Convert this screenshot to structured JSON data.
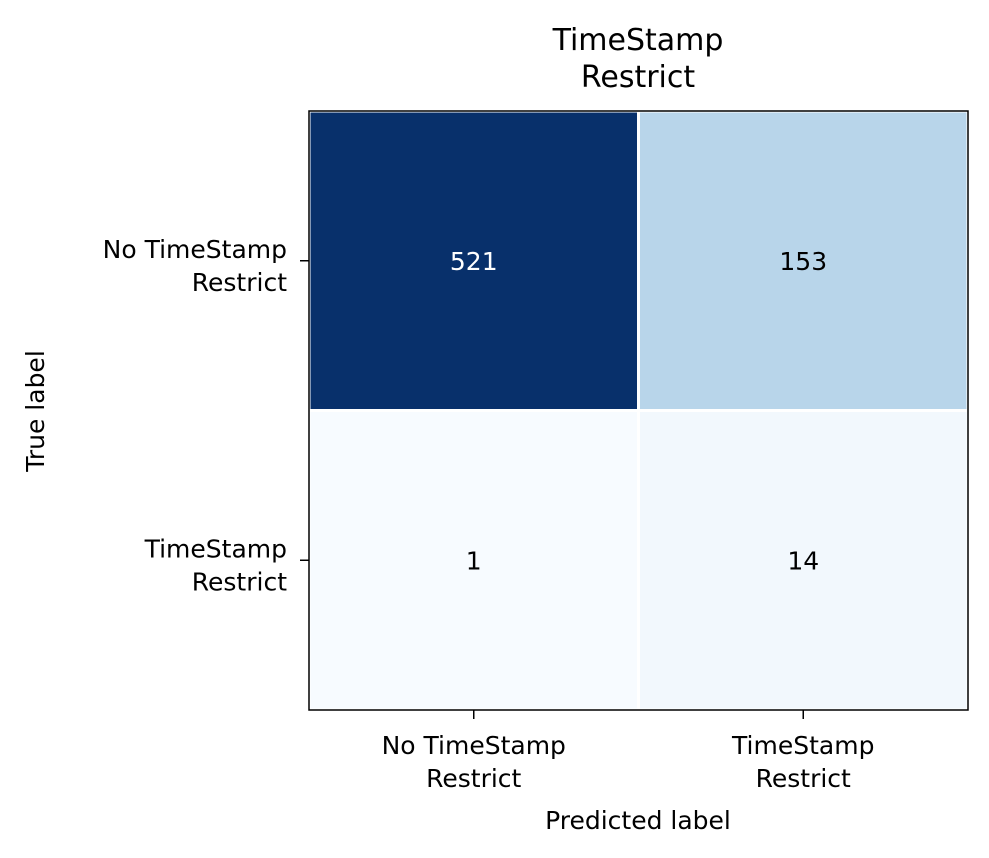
{
  "chart_data": {
    "type": "heatmap",
    "title": "TimeStamp\nRestrict",
    "xlabel": "Predicted label",
    "ylabel": "True label",
    "x_categories": [
      "No TimeStamp\nRestrict",
      "TimeStamp\nRestrict"
    ],
    "y_categories": [
      "No TimeStamp\nRestrict",
      "TimeStamp\nRestrict"
    ],
    "values": [
      [
        521,
        153
      ],
      [
        1,
        14
      ]
    ],
    "colormap": "Blues",
    "colors": {
      "cell_521": "#08306b",
      "cell_153": "#bad6ea",
      "cell_1": "#f7fbff",
      "cell_14": "#eff5fd",
      "text_dark_cell": "#ffffff",
      "text_light_cell": "#000000",
      "grid_line": "#ffffff",
      "frame": "#000000"
    },
    "grid": true,
    "legend": "none"
  }
}
